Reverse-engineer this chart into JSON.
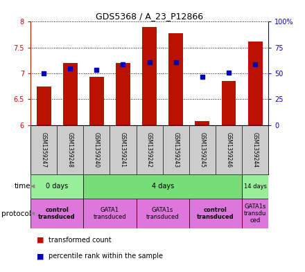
{
  "title": "GDS5368 / A_23_P12866",
  "samples": [
    "GSM1359247",
    "GSM1359248",
    "GSM1359240",
    "GSM1359241",
    "GSM1359242",
    "GSM1359243",
    "GSM1359245",
    "GSM1359246",
    "GSM1359244"
  ],
  "red_values": [
    6.75,
    7.2,
    6.93,
    7.2,
    7.9,
    7.78,
    6.08,
    6.85,
    7.62
  ],
  "blue_values": [
    7.0,
    7.1,
    7.07,
    7.18,
    7.22,
    7.22,
    6.93,
    7.02,
    7.18
  ],
  "ylim": [
    6.0,
    8.0
  ],
  "yticks_left": [
    6.0,
    6.5,
    7.0,
    7.5,
    8.0
  ],
  "ytick_labels_left": [
    "6",
    "6.5",
    "7",
    "7.5",
    "8"
  ],
  "yticks_right": [
    0,
    25,
    50,
    75,
    100
  ],
  "ytick_labels_right": [
    "0",
    "25",
    "50",
    "75",
    "100%"
  ],
  "red_color": "#bb1100",
  "blue_color": "#0000bb",
  "bar_width": 0.55,
  "time_groups": [
    {
      "label": "0 days",
      "start": 0,
      "end": 2,
      "color": "#99ee99"
    },
    {
      "label": "4 days",
      "start": 2,
      "end": 8,
      "color": "#77dd77"
    },
    {
      "label": "14 days",
      "start": 8,
      "end": 9,
      "color": "#99ee99"
    }
  ],
  "protocol_groups": [
    {
      "label": "control\ntransduced",
      "start": 0,
      "end": 2,
      "color": "#dd77dd",
      "bold": true
    },
    {
      "label": "GATA1\ntransduced",
      "start": 2,
      "end": 4,
      "color": "#dd77dd",
      "bold": false
    },
    {
      "label": "GATA1s\ntransduced",
      "start": 4,
      "end": 6,
      "color": "#dd77dd",
      "bold": false
    },
    {
      "label": "control\ntransduced",
      "start": 6,
      "end": 8,
      "color": "#dd77dd",
      "bold": true
    },
    {
      "label": "GATA1s\ntransdu\nced",
      "start": 8,
      "end": 9,
      "color": "#dd77dd",
      "bold": false
    }
  ],
  "time_label": "time",
  "protocol_label": "protocol",
  "legend_red": "transformed count",
  "legend_blue": "percentile rank within the sample",
  "sample_bg": "#cccccc"
}
